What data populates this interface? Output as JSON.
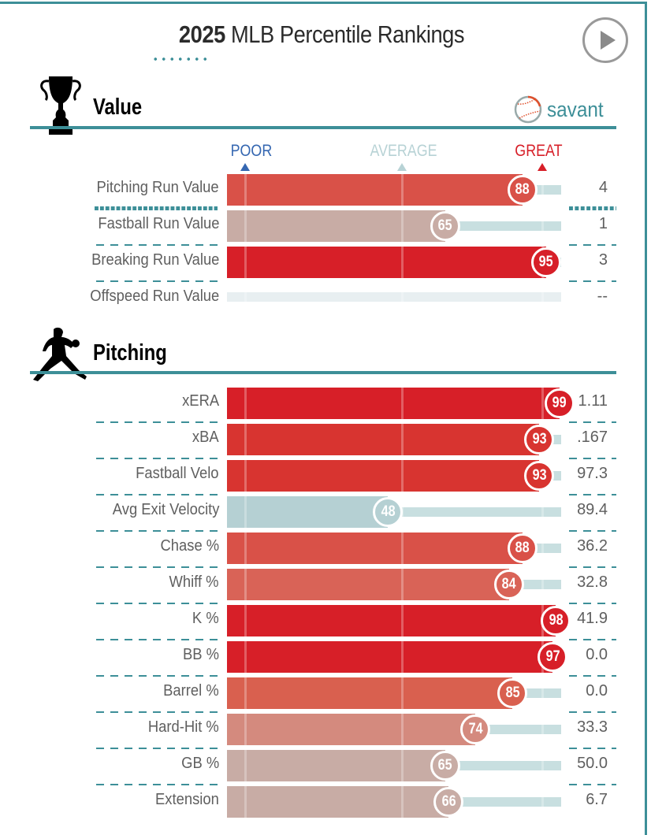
{
  "header": {
    "title_year": "2025",
    "title_rest": " MLB Percentile Rankings",
    "play_button": "play-icon"
  },
  "brand": {
    "name": "savant",
    "icon": "baseball-icon"
  },
  "scale": {
    "poor": "POOR",
    "average": "AVERAGE",
    "great": "GREAT"
  },
  "colors": {
    "accent": "#3d8f98",
    "poor": "#3567b1",
    "average": "#b7d2d5",
    "great": "#d71f28",
    "track": "#c8dfe0"
  },
  "sections": [
    {
      "title": "Value",
      "icon": "trophy-icon",
      "rows": [
        {
          "label": "Pitching Run Value",
          "percentile": 88,
          "value": "4",
          "color": "#d95148"
        },
        {
          "label": "Fastball Run Value",
          "percentile": 65,
          "value": "1",
          "color": "#c8aca5"
        },
        {
          "label": "Breaking Run Value",
          "percentile": 95,
          "value": "3",
          "color": "#d71f28"
        },
        {
          "label": "Offspeed Run Value",
          "percentile": null,
          "value": "--",
          "color": null
        }
      ]
    },
    {
      "title": "Pitching",
      "icon": "pitcher-icon",
      "rows": [
        {
          "label": "xERA",
          "percentile": 99,
          "value": "1.11",
          "color": "#d71f28"
        },
        {
          "label": "xBA",
          "percentile": 93,
          "value": ".167",
          "color": "#d83430"
        },
        {
          "label": "Fastball Velo",
          "percentile": 93,
          "value": "97.3",
          "color": "#d83430"
        },
        {
          "label": "Avg Exit Velocity",
          "percentile": 48,
          "value": "89.4",
          "color": "#b5d0d3"
        },
        {
          "label": "Chase %",
          "percentile": 88,
          "value": "36.2",
          "color": "#d95148"
        },
        {
          "label": "Whiff %",
          "percentile": 84,
          "value": "32.8",
          "color": "#d96357"
        },
        {
          "label": "K %",
          "percentile": 98,
          "value": "41.9",
          "color": "#d71f28"
        },
        {
          "label": "BB %",
          "percentile": 97,
          "value": "0.0",
          "color": "#d71f28"
        },
        {
          "label": "Barrel %",
          "percentile": 85,
          "value": "0.0",
          "color": "#d9604f"
        },
        {
          "label": "Hard-Hit %",
          "percentile": 74,
          "value": "33.3",
          "color": "#d48a7e"
        },
        {
          "label": "GB %",
          "percentile": 65,
          "value": "50.0",
          "color": "#c8aca5"
        },
        {
          "label": "Extension",
          "percentile": 66,
          "value": "6.7",
          "color": "#c8aca5"
        }
      ]
    }
  ]
}
